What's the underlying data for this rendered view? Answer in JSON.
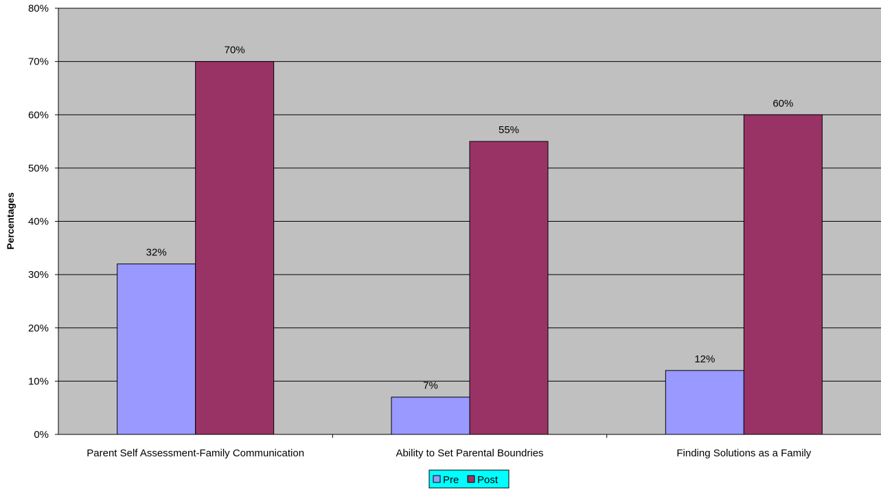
{
  "chart_data": {
    "type": "bar",
    "title": "",
    "xlabel": "",
    "ylabel": "Percentages",
    "categories": [
      "Parent Self Assessment-Family Communication",
      "Ability to Set Parental Boundries",
      "Finding Solutions as a Family"
    ],
    "series": [
      {
        "name": "Pre",
        "values": [
          32,
          7,
          12
        ],
        "labels": [
          "32%",
          "7%",
          "12%"
        ],
        "color": "#9999ff"
      },
      {
        "name": "Post",
        "values": [
          70,
          55,
          60
        ],
        "labels": [
          "70%",
          "55%",
          "60%"
        ],
        "color": "#993366"
      }
    ],
    "ylim": [
      0,
      80
    ],
    "yticks": [
      0,
      10,
      20,
      30,
      40,
      50,
      60,
      70,
      80
    ],
    "ytick_labels": [
      "0%",
      "10%",
      "20%",
      "30%",
      "40%",
      "50%",
      "60%",
      "70%",
      "80%"
    ],
    "grid": true,
    "plot_background": "#c0c0c0",
    "legend_background": "#00ffff",
    "legend_position": "bottom-center"
  }
}
